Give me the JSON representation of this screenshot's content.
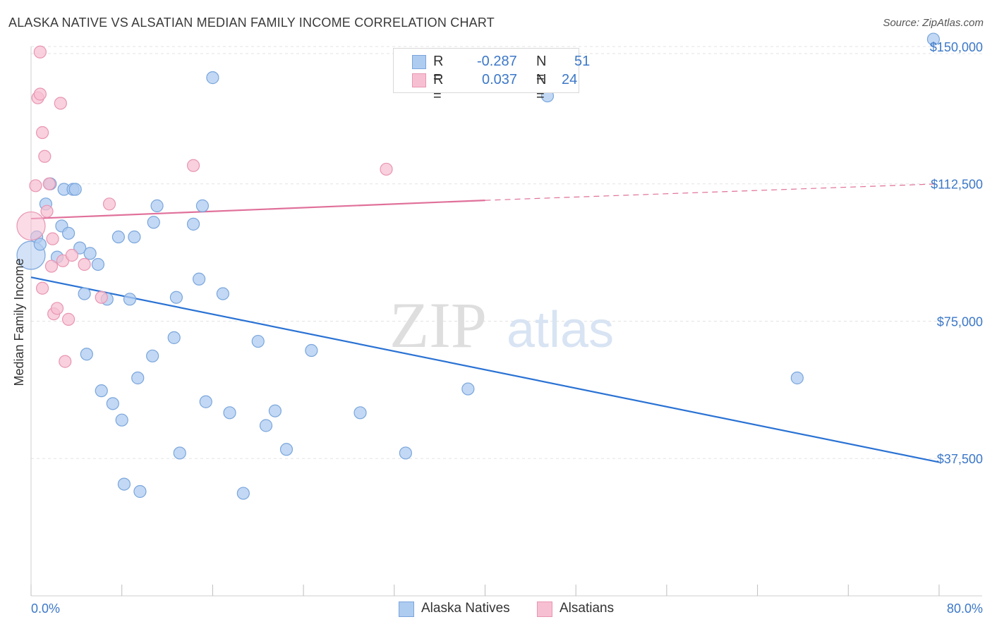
{
  "title": "ALASKA NATIVE VS ALSATIAN MEDIAN FAMILY INCOME CORRELATION CHART",
  "source": "Source: ZipAtlas.com",
  "watermark": {
    "zip": "ZIP",
    "atlas": "atlas"
  },
  "legend": {
    "rows": [
      {
        "r_label": "R =",
        "r_value": "-0.287",
        "n_label": "N =",
        "n_value": "51"
      },
      {
        "r_label": "R =",
        "r_value": "0.037",
        "n_label": "N =",
        "n_value": "24"
      }
    ]
  },
  "colors": {
    "blue_fill": "#aecbf0",
    "blue_stroke": "#7aa6dc",
    "blue_line": "#2a72d4",
    "pink_fill": "#f7c0d2",
    "pink_stroke": "#e895b2",
    "pink_line": "#e0709a",
    "axis_text": "#3c78c8",
    "grid": "#e3e3e3"
  },
  "chart_data": {
    "type": "scatter",
    "title": "ALASKA NATIVE VS ALSATIAN MEDIAN FAMILY INCOME CORRELATION CHART",
    "xlabel": "",
    "ylabel": "Median Family Income",
    "xlim": [
      0,
      80
    ],
    "ylim": [
      0,
      155000
    ],
    "x_tick_labels": [
      "0.0%",
      "80.0%"
    ],
    "y_ticks": [
      {
        "value": 37500,
        "label": "$37,500"
      },
      {
        "value": 75000,
        "label": "$75,000"
      },
      {
        "value": 112500,
        "label": "$112,500"
      },
      {
        "value": 150000,
        "label": "$150,000"
      }
    ],
    "grid": true,
    "legend_position": "bottom",
    "series": [
      {
        "name": "Alaska Natives",
        "color": "#aecbf0",
        "trend": {
          "x": [
            0,
            80
          ],
          "y": [
            87000,
            36500
          ]
        },
        "points": [
          {
            "x": 0.0,
            "y": 93000,
            "big": true
          },
          {
            "x": 0.5,
            "y": 98000
          },
          {
            "x": 0.8,
            "y": 96000
          },
          {
            "x": 1.3,
            "y": 107000
          },
          {
            "x": 1.7,
            "y": 112500
          },
          {
            "x": 2.3,
            "y": 92500
          },
          {
            "x": 2.7,
            "y": 101000
          },
          {
            "x": 2.9,
            "y": 111000
          },
          {
            "x": 3.3,
            "y": 99000
          },
          {
            "x": 3.7,
            "y": 111000
          },
          {
            "x": 3.9,
            "y": 111000
          },
          {
            "x": 4.3,
            "y": 95000
          },
          {
            "x": 4.7,
            "y": 82500
          },
          {
            "x": 4.9,
            "y": 66000
          },
          {
            "x": 5.2,
            "y": 93500
          },
          {
            "x": 5.9,
            "y": 90500
          },
          {
            "x": 6.2,
            "y": 56000
          },
          {
            "x": 6.7,
            "y": 81000
          },
          {
            "x": 7.2,
            "y": 52500
          },
          {
            "x": 7.7,
            "y": 98000
          },
          {
            "x": 8.0,
            "y": 48000
          },
          {
            "x": 8.2,
            "y": 30500
          },
          {
            "x": 8.7,
            "y": 81000
          },
          {
            "x": 9.1,
            "y": 98000
          },
          {
            "x": 9.4,
            "y": 59500
          },
          {
            "x": 9.6,
            "y": 28500
          },
          {
            "x": 10.7,
            "y": 65500
          },
          {
            "x": 10.8,
            "y": 102000
          },
          {
            "x": 11.1,
            "y": 106500
          },
          {
            "x": 12.6,
            "y": 70500
          },
          {
            "x": 12.8,
            "y": 81500
          },
          {
            "x": 13.1,
            "y": 39000
          },
          {
            "x": 14.3,
            "y": 101500
          },
          {
            "x": 14.8,
            "y": 86500
          },
          {
            "x": 15.1,
            "y": 106500
          },
          {
            "x": 15.4,
            "y": 53000
          },
          {
            "x": 16.0,
            "y": 141500
          },
          {
            "x": 16.9,
            "y": 82500
          },
          {
            "x": 17.5,
            "y": 50000
          },
          {
            "x": 18.7,
            "y": 28000
          },
          {
            "x": 20.0,
            "y": 69500
          },
          {
            "x": 20.7,
            "y": 46500
          },
          {
            "x": 21.5,
            "y": 50500
          },
          {
            "x": 22.5,
            "y": 40000
          },
          {
            "x": 24.7,
            "y": 67000
          },
          {
            "x": 29.0,
            "y": 50000
          },
          {
            "x": 33.0,
            "y": 39000
          },
          {
            "x": 38.5,
            "y": 56500
          },
          {
            "x": 45.5,
            "y": 136500
          },
          {
            "x": 67.5,
            "y": 59500
          },
          {
            "x": 79.5,
            "y": 152000
          }
        ]
      },
      {
        "name": "Alsatians",
        "color": "#f7c0d2",
        "trend": {
          "x": [
            0,
            40
          ],
          "y": [
            103000,
            108000
          ],
          "dashed_to": {
            "x": 80,
            "y": 112500
          }
        },
        "points": [
          {
            "x": 0.0,
            "y": 101000,
            "big": true
          },
          {
            "x": 0.4,
            "y": 112000
          },
          {
            "x": 0.6,
            "y": 136000
          },
          {
            "x": 0.8,
            "y": 137000
          },
          {
            "x": 0.8,
            "y": 148500
          },
          {
            "x": 1.0,
            "y": 126500
          },
          {
            "x": 1.0,
            "y": 84000
          },
          {
            "x": 1.2,
            "y": 120000
          },
          {
            "x": 1.4,
            "y": 105000
          },
          {
            "x": 1.6,
            "y": 112500
          },
          {
            "x": 1.8,
            "y": 90000
          },
          {
            "x": 1.9,
            "y": 97500
          },
          {
            "x": 2.0,
            "y": 77000
          },
          {
            "x": 2.3,
            "y": 78500
          },
          {
            "x": 2.6,
            "y": 134500
          },
          {
            "x": 2.8,
            "y": 91500
          },
          {
            "x": 3.0,
            "y": 64000
          },
          {
            "x": 3.3,
            "y": 75500
          },
          {
            "x": 3.6,
            "y": 93000
          },
          {
            "x": 4.7,
            "y": 90500
          },
          {
            "x": 6.2,
            "y": 81500
          },
          {
            "x": 6.9,
            "y": 107000
          },
          {
            "x": 14.3,
            "y": 117500
          },
          {
            "x": 31.3,
            "y": 116500
          }
        ]
      }
    ]
  },
  "bottom_legend": [
    "Alaska Natives",
    "Alsatians"
  ]
}
